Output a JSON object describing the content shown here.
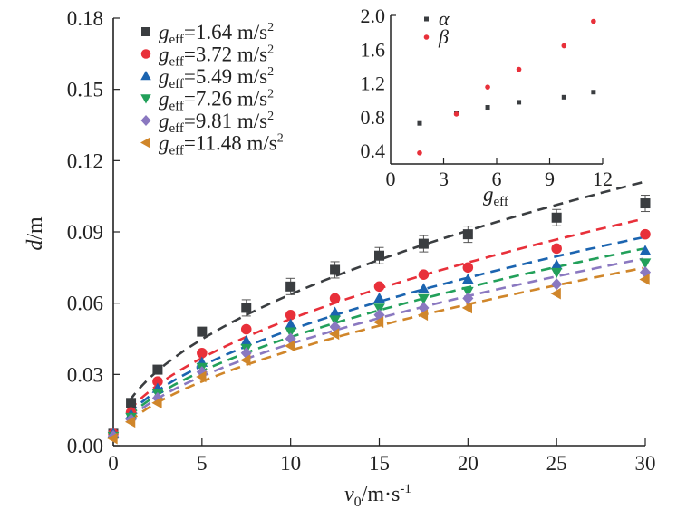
{
  "chart_data": [
    {
      "type": "scatter",
      "title": "",
      "xlabel": "v0/m·s-1",
      "xlabel_parts": {
        "var": "v",
        "sub": "0",
        "unit": "/m·s",
        "sup": "-1"
      },
      "ylabel": "d/m",
      "ylabel_parts": {
        "var": "d",
        "unit": "/m"
      },
      "xlim": [
        0,
        30
      ],
      "ylim": [
        0,
        0.18
      ],
      "xticks": [
        "0",
        "5",
        "10",
        "15",
        "20",
        "25",
        "30"
      ],
      "xtick_values": [
        0,
        5,
        10,
        15,
        20,
        25,
        30
      ],
      "yticks": [
        "0.00",
        "0.03",
        "0.06",
        "0.09",
        "0.12",
        "0.15",
        "0.18"
      ],
      "ytick_values": [
        0,
        0.03,
        0.06,
        0.09,
        0.12,
        0.15,
        0.18
      ],
      "grid": false,
      "legend_position": "top-left",
      "x": [
        0,
        1,
        2.5,
        5,
        7.5,
        10,
        12.5,
        15,
        17.5,
        20,
        25,
        30
      ],
      "series": [
        {
          "name": "g_eff=1.64 m/s2",
          "label_value": "1.64 m/s",
          "marker": "square",
          "color": "#3a3d40",
          "values": [
            0.005,
            0.018,
            0.032,
            0.048,
            0.058,
            0.067,
            0.074,
            0.08,
            0.085,
            0.089,
            0.096,
            0.102
          ],
          "error_bars": true
        },
        {
          "name": "g_eff=3.72 m/s2",
          "label_value": "3.72 m/s",
          "marker": "circle",
          "color": "#e8303a",
          "values": [
            0.005,
            0.014,
            0.027,
            0.039,
            0.049,
            0.055,
            0.062,
            0.067,
            0.072,
            0.075,
            0.083,
            0.089
          ],
          "error_bars": false
        },
        {
          "name": "g_eff=5.49 m/s2",
          "label_value": "5.49 m/s",
          "marker": "triangle-up",
          "color": "#1b64b0",
          "values": [
            0.005,
            0.013,
            0.024,
            0.035,
            0.044,
            0.051,
            0.056,
            0.062,
            0.066,
            0.07,
            0.076,
            0.082
          ],
          "error_bars": false
        },
        {
          "name": "g_eff=7.26 m/s2",
          "label_value": "7.26 m/s",
          "marker": "triangle-down",
          "color": "#22a05a",
          "values": [
            0.004,
            0.012,
            0.022,
            0.033,
            0.041,
            0.048,
            0.053,
            0.058,
            0.062,
            0.065,
            0.073,
            0.077
          ],
          "error_bars": false
        },
        {
          "name": "g_eff=9.81 m/s2",
          "label_value": "9.81 m/s",
          "marker": "diamond",
          "color": "#8a78c0",
          "values": [
            0.004,
            0.011,
            0.02,
            0.031,
            0.039,
            0.045,
            0.05,
            0.055,
            0.058,
            0.062,
            0.068,
            0.073
          ],
          "error_bars": false
        },
        {
          "name": "g_eff=11.48 m/s2",
          "label_value": "11.48 m/s",
          "marker": "triangle-left",
          "color": "#d0862a",
          "values": [
            0.003,
            0.01,
            0.018,
            0.029,
            0.036,
            0.042,
            0.047,
            0.052,
            0.055,
            0.058,
            0.064,
            0.07
          ],
          "error_bars": false
        }
      ],
      "fit_curves": "dashed, one per series"
    },
    {
      "type": "scatter",
      "title": "",
      "xlabel": "g_eff",
      "ylabel": "",
      "xlim": [
        0,
        12
      ],
      "ylim": [
        0.25,
        2.0
      ],
      "xticks": [
        "0",
        "3",
        "6",
        "9",
        "12"
      ],
      "xtick_values": [
        0,
        3,
        6,
        9,
        12
      ],
      "yticks": [
        "0.4",
        "0.8",
        "1.2",
        "1.6",
        "2.0"
      ],
      "ytick_values": [
        0.4,
        0.8,
        1.2,
        1.6,
        2.0
      ],
      "grid": false,
      "legend_position": "top-left",
      "x": [
        1.64,
        3.72,
        5.49,
        7.26,
        9.81,
        11.48
      ],
      "series": [
        {
          "name": "α",
          "marker": "square",
          "color": "#3a3d40",
          "values": [
            0.72,
            0.84,
            0.91,
            0.97,
            1.03,
            1.09
          ]
        },
        {
          "name": "β",
          "marker": "circle",
          "color": "#e8303a",
          "values": [
            0.37,
            0.83,
            1.15,
            1.36,
            1.64,
            1.93
          ]
        }
      ]
    }
  ]
}
